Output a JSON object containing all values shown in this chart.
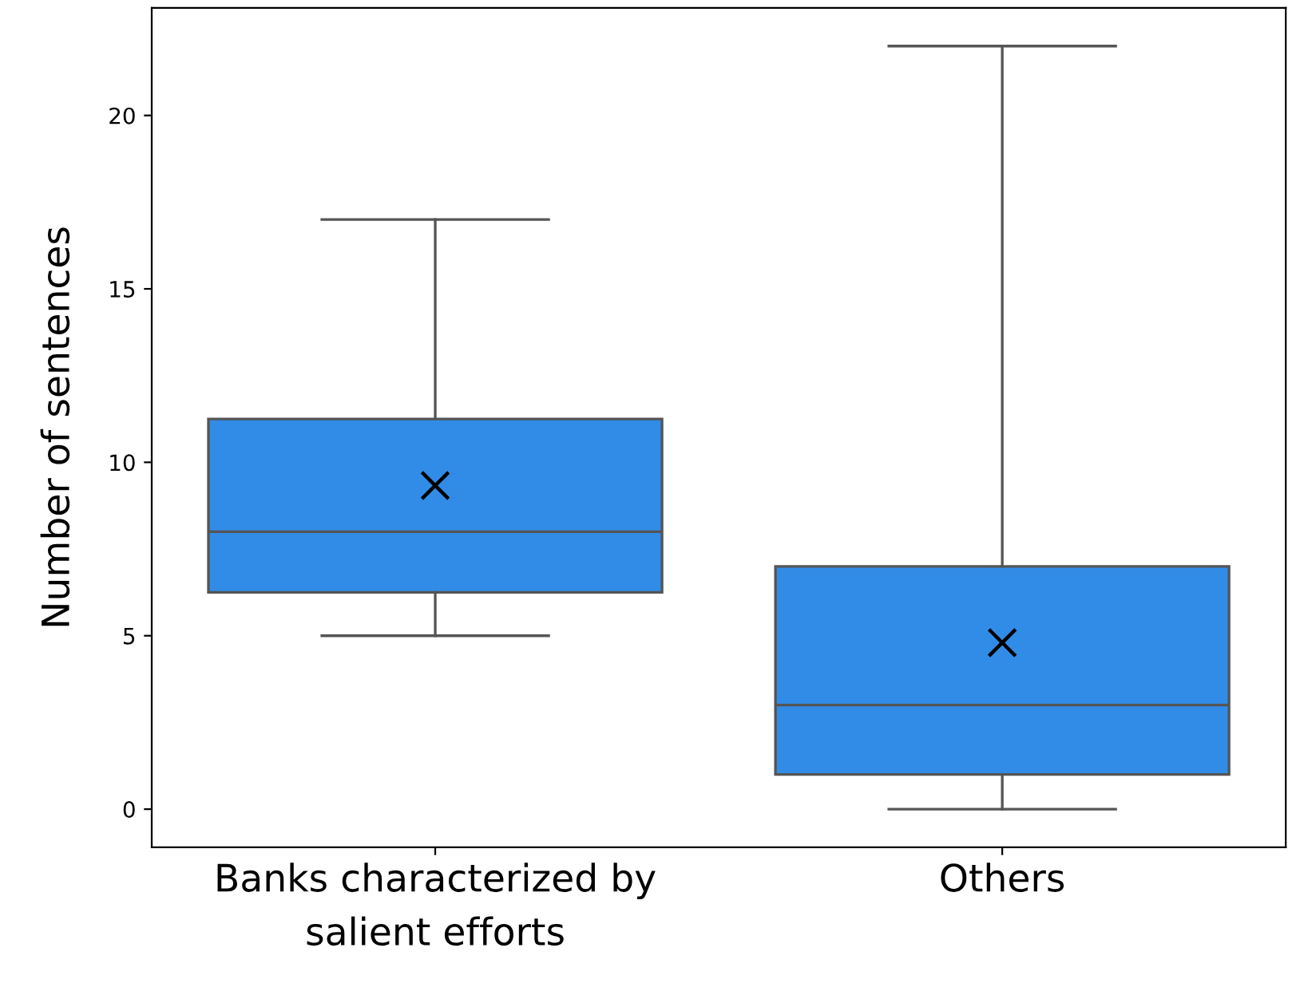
{
  "chart_data": {
    "type": "box",
    "ylabel": "Number of sentences",
    "categories": [
      "Banks characterized by\nsalient efforts",
      "Others"
    ],
    "boxes": [
      {
        "low": 5,
        "q1": 6.25,
        "median": 8,
        "q3": 11.25,
        "high": 17,
        "mean": 9.33
      },
      {
        "low": 0,
        "q1": 1,
        "median": 3,
        "q3": 7,
        "high": 22,
        "mean": 4.8
      }
    ],
    "color": "#318ce7",
    "marker": "cross",
    "ylim": [
      -1.1,
      23.1
    ],
    "yticks": [
      0,
      5,
      10,
      15,
      20
    ],
    "grid": false
  }
}
